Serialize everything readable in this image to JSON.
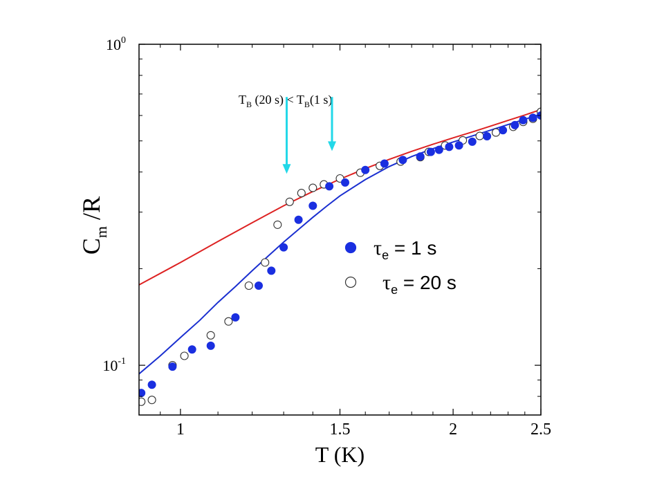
{
  "chart_data": {
    "type": "scatter",
    "xscale": "log",
    "yscale": "log",
    "xlim": [
      0.9,
      2.5
    ],
    "ylim": [
      0.07,
      1.0
    ],
    "xlabel": "T (K)",
    "ylabel": {
      "main": "C",
      "sub": "m",
      "rest": " /R"
    },
    "x_ticks": [
      {
        "value": 1,
        "label": "1"
      },
      {
        "value": 1.5,
        "label": "1.5"
      },
      {
        "value": 2,
        "label": "2"
      },
      {
        "value": 2.5,
        "label": "2.5"
      }
    ],
    "y_ticks": [
      {
        "value": 0.1,
        "base": "10",
        "exp": "-1"
      },
      {
        "value": 1.0,
        "base": "10",
        "exp": "0"
      }
    ],
    "legend": {
      "position": "center-right",
      "entries": [
        {
          "marker": "filled",
          "tau": "τ",
          "sub": "e",
          "rest": " = 1 s"
        },
        {
          "marker": "open",
          "tau": "τ",
          "sub": "e",
          "rest": " = 20 s"
        }
      ]
    },
    "annotation": {
      "parts": [
        {
          "t": "T",
          "sub": false
        },
        {
          "t": "B",
          "sub": true
        },
        {
          "t": " (20 s) < T",
          "sub": false
        },
        {
          "t": "B",
          "sub": true
        },
        {
          "t": "(1 s)",
          "sub": false
        }
      ],
      "arrows": [
        {
          "x": 1.31,
          "y_from": 0.72,
          "y_to": 0.395
        },
        {
          "x": 1.47,
          "y_from": 0.72,
          "y_to": 0.465
        }
      ]
    },
    "series": [
      {
        "marker": "filled",
        "x": [
          0.905,
          0.93,
          0.98,
          1.03,
          1.08,
          1.15,
          1.22,
          1.26,
          1.3,
          1.35,
          1.4,
          1.46,
          1.52,
          1.6,
          1.68,
          1.76,
          1.84,
          1.89,
          1.93,
          1.98,
          2.03,
          2.1,
          2.18,
          2.27,
          2.34,
          2.39,
          2.45,
          2.5
        ],
        "y": [
          0.082,
          0.087,
          0.099,
          0.112,
          0.115,
          0.141,
          0.177,
          0.197,
          0.233,
          0.284,
          0.314,
          0.361,
          0.371,
          0.406,
          0.425,
          0.436,
          0.447,
          0.462,
          0.469,
          0.479,
          0.484,
          0.497,
          0.517,
          0.54,
          0.56,
          0.58,
          0.59,
          0.6
        ]
      },
      {
        "marker": "open",
        "x": [
          0.905,
          0.93,
          0.98,
          1.01,
          1.08,
          1.13,
          1.19,
          1.24,
          1.28,
          1.32,
          1.36,
          1.4,
          1.44,
          1.5,
          1.58,
          1.66,
          1.75,
          1.84,
          1.88,
          1.96,
          2.05,
          2.14,
          2.23,
          2.33,
          2.39,
          2.45,
          2.5
        ],
        "y": [
          0.077,
          0.078,
          0.1,
          0.107,
          0.124,
          0.137,
          0.177,
          0.209,
          0.274,
          0.323,
          0.344,
          0.357,
          0.366,
          0.382,
          0.398,
          0.418,
          0.431,
          0.445,
          0.462,
          0.484,
          0.502,
          0.518,
          0.531,
          0.553,
          0.573,
          0.586,
          0.616
        ]
      }
    ],
    "curves": [
      {
        "color": "#dd2222",
        "x": [
          0.9,
          1.0,
          1.1,
          1.2,
          1.3,
          1.4,
          1.5,
          1.6,
          1.7,
          1.8,
          1.9,
          2.0,
          2.1,
          2.2,
          2.3,
          2.4,
          2.5
        ],
        "y": [
          0.178,
          0.209,
          0.243,
          0.278,
          0.314,
          0.348,
          0.38,
          0.41,
          0.438,
          0.464,
          0.488,
          0.511,
          0.533,
          0.556,
          0.579,
          0.602,
          0.626
        ]
      },
      {
        "color": "#1a2fd0",
        "x": [
          0.9,
          0.95,
          1.0,
          1.05,
          1.1,
          1.15,
          1.2,
          1.25,
          1.3,
          1.35,
          1.4,
          1.45,
          1.5,
          1.6,
          1.7,
          1.8,
          1.9,
          2.0,
          2.1,
          2.2,
          2.3,
          2.4,
          2.5
        ],
        "y": [
          0.094,
          0.107,
          0.122,
          0.138,
          0.157,
          0.176,
          0.197,
          0.219,
          0.242,
          0.265,
          0.289,
          0.313,
          0.337,
          0.379,
          0.416,
          0.447,
          0.473,
          0.496,
          0.518,
          0.54,
          0.562,
          0.584,
          0.606
        ]
      }
    ],
    "colors": {
      "filled_marker": "#1a2fe0",
      "open_marker_stroke": "#333333",
      "arrow": "#22d8e8",
      "axis": "#000000"
    }
  }
}
